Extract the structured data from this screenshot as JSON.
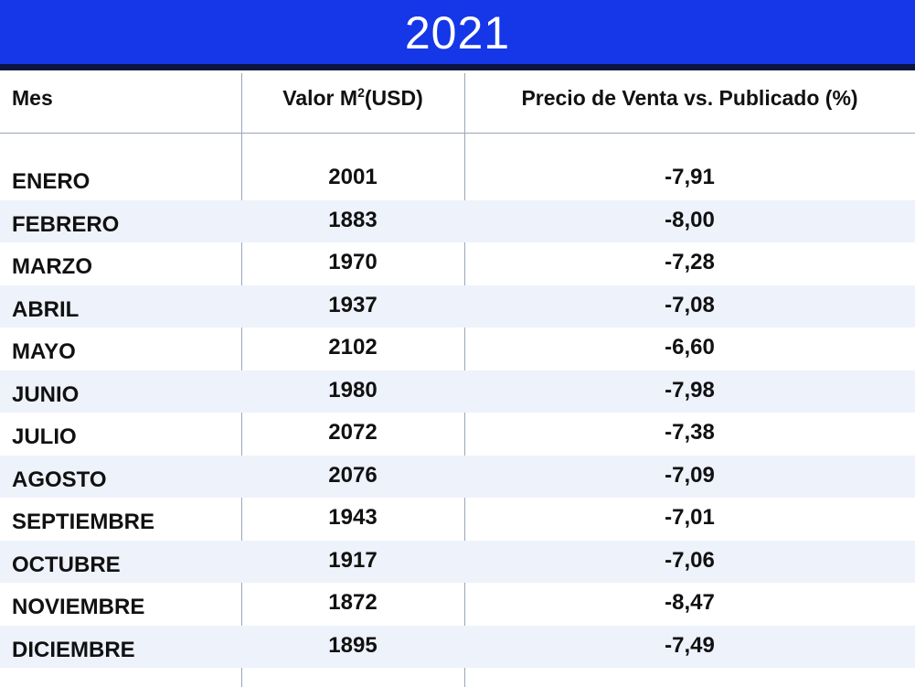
{
  "title": "2021",
  "colors": {
    "banner": "#1537e8",
    "banner_rule": "#0b1540",
    "row_alt": "#eef2fb",
    "grid_line": "#9aa6b8"
  },
  "headers": {
    "month": "Mes",
    "value_prefix": "Valor M",
    "value_sup": "2",
    "value_suffix": "(USD)",
    "price": "Precio de Venta vs. Publicado (%)"
  },
  "rows": [
    {
      "month": "ENERO",
      "value": "2001",
      "pct": "-7,91"
    },
    {
      "month": "FEBRERO",
      "value": "1883",
      "pct": "-8,00"
    },
    {
      "month": "MARZO",
      "value": "1970",
      "pct": "-7,28"
    },
    {
      "month": "ABRIL",
      "value": "1937",
      "pct": "-7,08"
    },
    {
      "month": "MAYO",
      "value": "2102",
      "pct": "-6,60"
    },
    {
      "month": "JUNIO",
      "value": "1980",
      "pct": "-7,98"
    },
    {
      "month": "JULIO",
      "value": "2072",
      "pct": "-7,38"
    },
    {
      "month": "AGOSTO",
      "value": "2076",
      "pct": "-7,09"
    },
    {
      "month": "SEPTIEMBRE",
      "value": "1943",
      "pct": "-7,01"
    },
    {
      "month": "OCTUBRE",
      "value": "1917",
      "pct": "-7,06"
    },
    {
      "month": "NOVIEMBRE",
      "value": "1872",
      "pct": "-8,47"
    },
    {
      "month": "DICIEMBRE",
      "value": "1895",
      "pct": "-7,49"
    }
  ]
}
